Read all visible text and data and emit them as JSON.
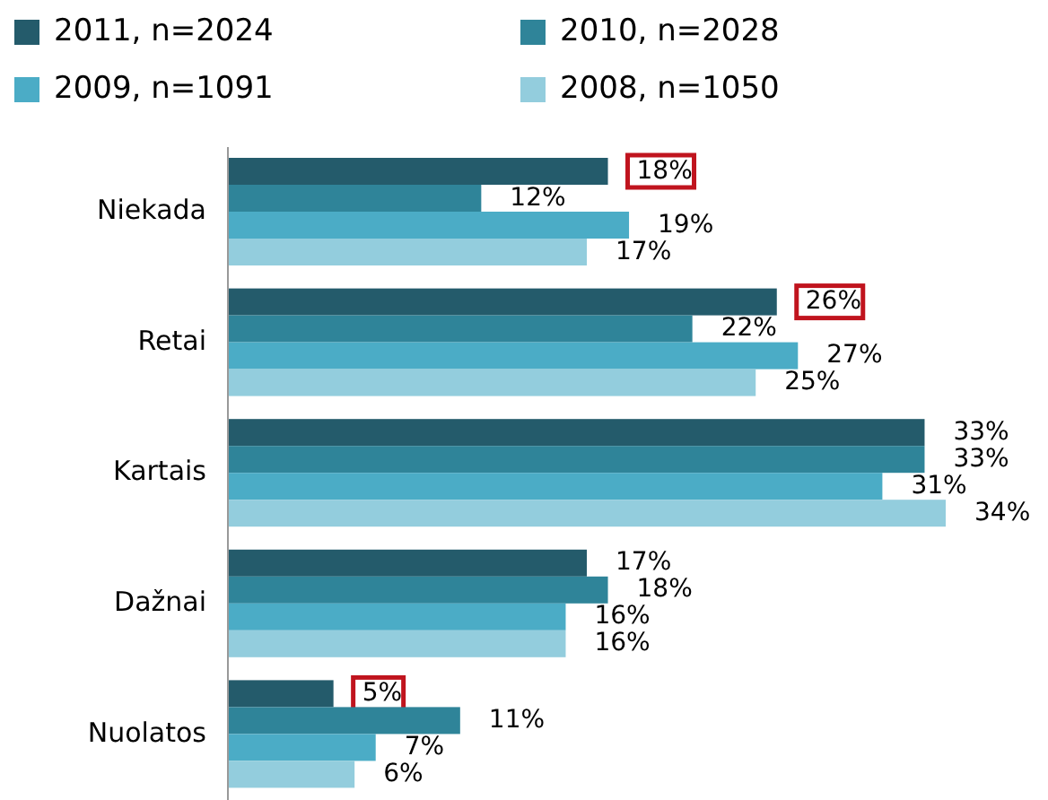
{
  "chart_data": {
    "type": "bar",
    "orientation": "horizontal",
    "legend": "top",
    "tick_labels": "y",
    "categories": [
      "Niekada",
      "Retai",
      "Kartais",
      "Dažnai",
      "Nuolatos"
    ],
    "series": [
      {
        "name": "2011, n=2024",
        "color": "#245b6b",
        "values": [
          18,
          26,
          33,
          17,
          5
        ],
        "value_labels": [
          "18%",
          "26%",
          "33%",
          "17%",
          "5%"
        ]
      },
      {
        "name": "2010, n=2028",
        "color": "#2f8499",
        "values": [
          12,
          22,
          33,
          18,
          11
        ],
        "value_labels": [
          "12%",
          "22%",
          "33%",
          "18%",
          "11%"
        ]
      },
      {
        "name": "2009, n=1091",
        "color": "#4bacc6",
        "values": [
          19,
          27,
          31,
          16,
          7
        ],
        "value_labels": [
          "19%",
          "27%",
          "31%",
          "16%",
          "7%"
        ]
      },
      {
        "name": "2008, n=1050",
        "color": "#93cddd",
        "values": [
          17,
          25,
          34,
          16,
          6
        ],
        "value_labels": [
          "17%",
          "25%",
          "34%",
          "16%",
          "6%"
        ]
      }
    ]
  }
}
